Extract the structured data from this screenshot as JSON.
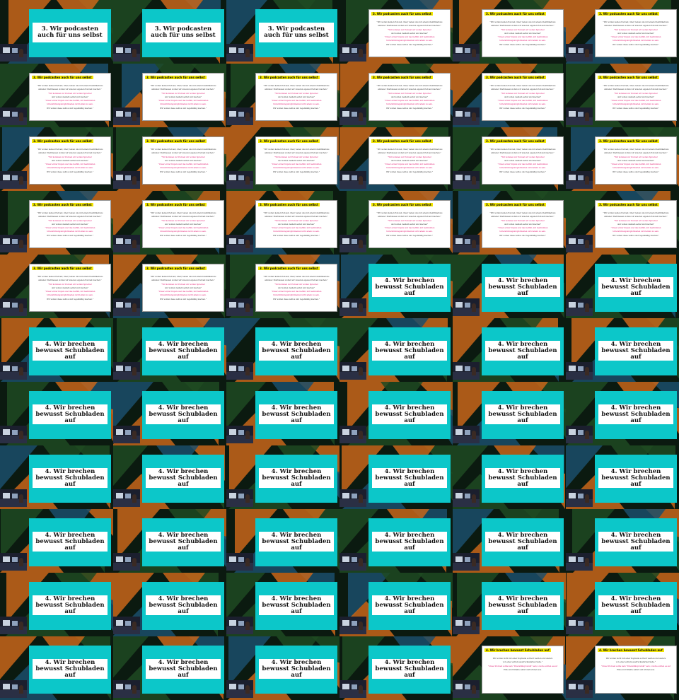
{
  "slides": {
    "s3_title": "3. Wir podcasten auch für uns selbst",
    "s3_header": "3. Wir podcasten auch für uns selbst",
    "s3_lines": [
      "\"Wir wollen keinen Podcast, über/ neben uns mit einem Identifikations",
      "anbieter. Stattdessen wollen wir unseren eigenen Podcast machen.\"",
      "\"Wir kommen zur Podcast wir wollen Sprecher",
      "und wollen deshalb selbst und machen\"",
      "\"Unser erster Impuls war das Gefühl, mit bestimmten",
      "Unterstützungsmöglichkeiten nicht allein zu sein.",
      "Wir wollen diese zeitlos und regelmäßig machen.\""
    ],
    "s4_title": "4. Wir brechen bewusst Schubladen auf",
    "s4_header": "4. Wir brechen bewusst Schubladen auf",
    "s4_lines": [
      "Wir wollen nicht mit einer Kopfzeile sortiert werden und anders",
      "von einer extrem ausdrucksstarken Seite.\"",
      "\"Unser Podcast sollte kein \"Diversitätsprodukt\" sein, Lösche sollten es auf",
      "Ende und Inhalte selbst und können aus."
    ]
  },
  "sequence": [
    "s3t",
    "s3t",
    "s3t",
    "s3x",
    "s3x",
    "s3x",
    "s3x",
    "s3x",
    "s3x",
    "s3x",
    "s3x",
    "s3x",
    "s3x",
    "s3x",
    "s3x",
    "s3x",
    "s3x",
    "s3x",
    "s3x",
    "s3x",
    "s3x",
    "s3x",
    "s3x",
    "s3x",
    "s3x",
    "s3x",
    "s3x",
    "s4t",
    "s4t",
    "s4t",
    "s4t",
    "s4t",
    "s4t",
    "s4t",
    "s4t",
    "s4t",
    "s4t",
    "s4t",
    "s4t",
    "s4t",
    "s4t",
    "s4t",
    "s4t",
    "s4t",
    "s4t",
    "s4t",
    "s4t",
    "s4t",
    "s4t",
    "s4t",
    "s4t",
    "s4t",
    "s4t",
    "s4t",
    "s4t",
    "s4t",
    "s4t",
    "s4t",
    "s4t",
    "s4t",
    "s4t",
    "s4t",
    "s4t",
    "s4t",
    "s4x",
    "s4x"
  ],
  "colors": {
    "slide_teal": "#0cc7c9",
    "header_yellow": "#f2e600",
    "pink_text": "#e0156e",
    "bg_dark": "#0b1a10",
    "bg_orange": "#c8661a",
    "bg_green": "#1f4a22",
    "bg_blue": "#1b4f6b"
  }
}
